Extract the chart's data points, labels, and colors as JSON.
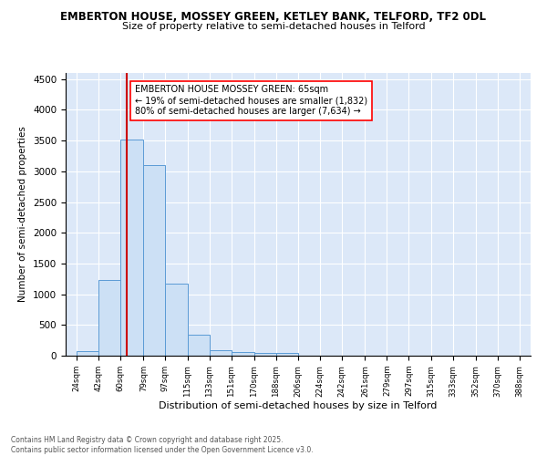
{
  "title1": "EMBERTON HOUSE, MOSSEY GREEN, KETLEY BANK, TELFORD, TF2 0DL",
  "title2": "Size of property relative to semi-detached houses in Telford",
  "xlabel": "Distribution of semi-detached houses by size in Telford",
  "ylabel": "Number of semi-detached properties",
  "footnote1": "Contains HM Land Registry data © Crown copyright and database right 2025.",
  "footnote2": "Contains public sector information licensed under the Open Government Licence v3.0.",
  "annotation_title": "EMBERTON HOUSE MOSSEY GREEN: 65sqm",
  "annotation_line2": "← 19% of semi-detached houses are smaller (1,832)",
  "annotation_line3": "80% of semi-detached houses are larger (7,634) →",
  "bar_left_edges": [
    24,
    42,
    60,
    79,
    97,
    115,
    133,
    151,
    170,
    188,
    206,
    224,
    242,
    261,
    279,
    297,
    315,
    333,
    352,
    370
  ],
  "bar_heights": [
    75,
    1225,
    3520,
    3100,
    1165,
    340,
    95,
    55,
    45,
    45,
    0,
    0,
    0,
    0,
    0,
    0,
    0,
    0,
    0,
    0
  ],
  "bin_widths": [
    18,
    18,
    19,
    18,
    18,
    18,
    18,
    19,
    18,
    18,
    18,
    18,
    19,
    18,
    18,
    18,
    18,
    19,
    18,
    18
  ],
  "tick_labels": [
    "24sqm",
    "42sqm",
    "60sqm",
    "79sqm",
    "97sqm",
    "115sqm",
    "133sqm",
    "151sqm",
    "170sqm",
    "188sqm",
    "206sqm",
    "224sqm",
    "242sqm",
    "261sqm",
    "279sqm",
    "297sqm",
    "315sqm",
    "333sqm",
    "352sqm",
    "370sqm",
    "388sqm"
  ],
  "tick_positions": [
    24,
    42,
    60,
    79,
    97,
    115,
    133,
    151,
    170,
    188,
    206,
    224,
    242,
    261,
    279,
    297,
    315,
    333,
    352,
    370,
    388
  ],
  "bar_color": "#cce0f5",
  "bar_edge_color": "#5b9bd5",
  "property_line_x": 65,
  "property_line_color": "#cc0000",
  "background_color": "#dce8f8",
  "ylim": [
    0,
    4600
  ],
  "xlim_left": 15,
  "xlim_right": 397
}
